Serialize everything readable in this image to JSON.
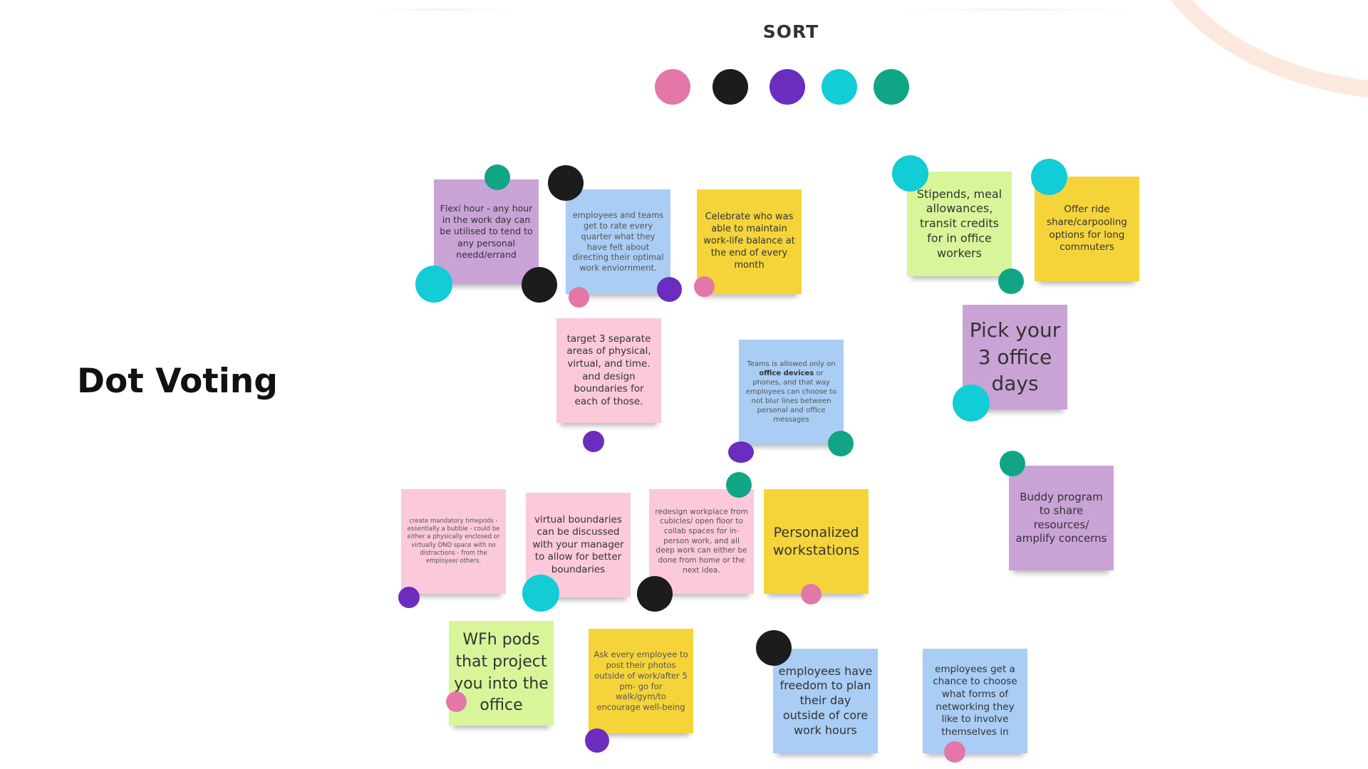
{
  "board": {
    "title": "Dot Voting",
    "sort_label": "SORT"
  },
  "colors": {
    "pink_dot": "#e377a8",
    "black_dot": "#1c1c1c",
    "purple_dot": "#6a2dbd",
    "cyan_dot": "#12ccd6",
    "green_dot": "#10a585",
    "note_purple": "#c9a3d6",
    "note_blue": "#a9cdf4",
    "note_yellow": "#f5d43a",
    "note_green": "#d8f59a",
    "note_pink": "#fbc9da"
  },
  "palette": [
    "pink",
    "black",
    "purple",
    "cyan",
    "green"
  ],
  "notes": [
    {
      "id": "flexi-hour",
      "text": "Flexi hour - any hour in the work day can be utilised to tend to any personal needd/errand",
      "color": "purple"
    },
    {
      "id": "rate-environment",
      "text": "employees and teams get to rate every quarter what they have felt about directing their optimal work enviornment.",
      "color": "blue"
    },
    {
      "id": "celebrate-balance",
      "text": "Celebrate who was able to maintain work-life balance at the end of every month",
      "color": "yellow"
    },
    {
      "id": "stipends",
      "text": "Stipends, meal allowances, transit credits for in office workers",
      "color": "green"
    },
    {
      "id": "ride-share",
      "text": "Offer ride share/carpooling options for long commuters",
      "color": "yellow"
    },
    {
      "id": "three-areas",
      "text": "target 3 separate areas of physical, virtual, and time. and design boundaries for each of those.",
      "color": "pink"
    },
    {
      "id": "teams-devices",
      "text_before": "Teams is allowed only on ",
      "text_bold": "office devices",
      "text_after": " or phones, and that way employees can choose to not blur lines between personal and office messages",
      "color": "blue"
    },
    {
      "id": "pick-office-days",
      "text": "Pick your 3 office days",
      "color": "purple"
    },
    {
      "id": "buddy-program",
      "text": "Buddy program to share resources/ amplify concerns",
      "color": "purple"
    },
    {
      "id": "timepods",
      "text": "create mandatory timepods - essentially a bubble - could be either a physically enclosed or virtually DND space with no distractions - from the employee/ others.",
      "color": "pink"
    },
    {
      "id": "virtual-boundaries",
      "text": "virtual boundaries can be discussed with your manager to allow for better boundaries",
      "color": "pink"
    },
    {
      "id": "redesign-workplace",
      "text": "redesign workplace from cubicles/ open floor to collab spaces for in-person work, and all deep work can either be done from home or the next idea.",
      "color": "pink"
    },
    {
      "id": "personalized-workstations",
      "text": "Personalized workstations",
      "color": "yellow"
    },
    {
      "id": "wfh-pods",
      "text": "WFh pods that project you into the office",
      "color": "green"
    },
    {
      "id": "post-photos",
      "text": "Ask every employee to post their photos outside of work/after 5 pm- go for walk/gym/to encourage well-being",
      "color": "yellow"
    },
    {
      "id": "plan-day",
      "text": "employees have freedom to plan their day outside of core work hours",
      "color": "blue"
    },
    {
      "id": "networking",
      "text": "employees get a chance to choose what forms of networking they like to involve themselves in",
      "color": "blue"
    }
  ]
}
